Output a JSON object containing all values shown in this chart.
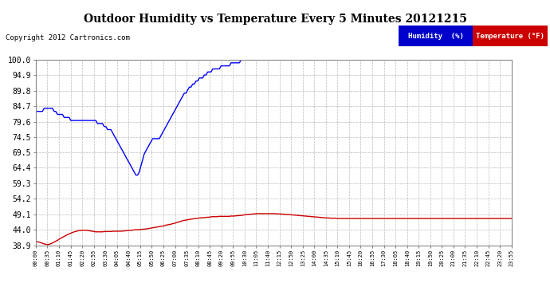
{
  "title": "Outdoor Humidity vs Temperature Every 5 Minutes 20121215",
  "copyright": "Copyright 2012 Cartronics.com",
  "background_color": "#ffffff",
  "grid_color": "#aaaaaa",
  "ylim": [
    38.9,
    100.0
  ],
  "yticks": [
    38.9,
    44.0,
    49.1,
    54.2,
    59.3,
    64.4,
    69.5,
    74.5,
    79.6,
    84.7,
    89.8,
    94.9,
    100.0
  ],
  "legend": [
    {
      "label": "Temperature (°F)",
      "bg": "#cc0000",
      "text_color": "#ffffff"
    },
    {
      "label": "Humidity  (%)",
      "bg": "#0000cc",
      "text_color": "#ffffff"
    }
  ],
  "humidity_color": "#0000ff",
  "temperature_color": "#cc0000",
  "humidity_data": [
    83,
    83,
    83,
    83,
    83,
    84,
    84,
    84,
    84,
    84,
    84,
    83,
    83,
    82,
    82,
    82,
    82,
    81,
    81,
    81,
    81,
    80,
    80,
    80,
    80,
    80,
    80,
    80,
    80,
    80,
    80,
    80,
    80,
    80,
    80,
    80,
    80,
    79,
    79,
    79,
    79,
    78,
    78,
    77,
    77,
    77,
    76,
    75,
    74,
    73,
    72,
    71,
    70,
    69,
    68,
    67,
    66,
    65,
    64,
    63,
    62,
    62,
    63,
    65,
    67,
    69,
    70,
    71,
    72,
    73,
    74,
    74,
    74,
    74,
    74,
    75,
    76,
    77,
    78,
    79,
    80,
    81,
    82,
    83,
    84,
    85,
    86,
    87,
    88,
    89,
    89,
    90,
    91,
    91,
    92,
    92,
    93,
    93,
    94,
    94,
    94,
    95,
    95,
    96,
    96,
    96,
    97,
    97,
    97,
    97,
    97,
    98,
    98,
    98,
    98,
    98,
    98,
    99,
    99,
    99,
    99,
    99,
    99,
    100,
    100,
    100,
    100,
    100,
    100,
    100,
    100,
    100,
    100,
    100,
    100,
    100,
    100,
    100,
    100,
    100,
    100,
    100,
    100,
    100,
    100,
    100,
    100,
    100,
    100,
    100,
    100,
    100,
    100,
    100,
    100,
    100,
    100,
    100,
    100,
    100,
    100,
    100,
    100,
    100,
    100,
    100,
    100,
    100,
    100,
    100,
    100,
    100,
    100,
    100,
    100,
    100,
    100,
    100,
    100,
    100,
    100,
    100,
    100,
    100,
    100,
    100,
    100,
    100,
    100,
    100,
    100,
    100,
    100,
    100,
    100,
    100,
    100,
    100,
    100,
    100,
    100,
    100,
    100,
    100,
    100,
    100,
    100,
    100,
    100,
    100,
    100,
    100,
    100,
    100,
    100,
    100,
    100,
    100,
    100,
    100,
    100,
    100,
    100,
    100,
    100,
    100,
    100,
    100,
    100,
    100,
    100,
    100,
    100,
    100,
    100,
    100,
    100,
    100,
    100,
    100,
    100,
    100,
    100,
    100,
    100,
    100,
    100,
    100,
    100,
    100,
    100,
    100,
    100,
    100,
    100,
    100,
    100,
    100,
    100,
    100,
    100,
    100,
    100,
    100,
    100,
    100,
    100,
    100,
    100,
    100,
    100,
    100,
    100,
    100,
    100,
    100,
    100,
    100,
    100,
    100,
    100,
    100,
    100,
    100,
    100,
    100
  ],
  "temperature_data": [
    40.1,
    40.0,
    39.9,
    39.7,
    39.5,
    39.3,
    39.2,
    39.1,
    39.2,
    39.4,
    39.7,
    40.0,
    40.3,
    40.6,
    41.0,
    41.3,
    41.6,
    41.9,
    42.2,
    42.5,
    42.7,
    43.0,
    43.2,
    43.4,
    43.5,
    43.7,
    43.7,
    43.8,
    43.8,
    43.8,
    43.8,
    43.7,
    43.6,
    43.5,
    43.4,
    43.3,
    43.3,
    43.3,
    43.3,
    43.3,
    43.4,
    43.4,
    43.4,
    43.4,
    43.4,
    43.5,
    43.5,
    43.5,
    43.5,
    43.5,
    43.5,
    43.6,
    43.6,
    43.7,
    43.7,
    43.8,
    43.8,
    43.9,
    44.0,
    44.0,
    44.0,
    44.1,
    44.1,
    44.2,
    44.2,
    44.3,
    44.4,
    44.5,
    44.6,
    44.7,
    44.8,
    44.9,
    45.0,
    45.1,
    45.2,
    45.3,
    45.5,
    45.6,
    45.7,
    45.8,
    46.0,
    46.1,
    46.3,
    46.5,
    46.6,
    46.8,
    47.0,
    47.1,
    47.2,
    47.3,
    47.4,
    47.5,
    47.6,
    47.7,
    47.7,
    47.8,
    47.9,
    47.9,
    48.0,
    48.0,
    48.1,
    48.1,
    48.2,
    48.3,
    48.3,
    48.3,
    48.3,
    48.4,
    48.4,
    48.4,
    48.4,
    48.4,
    48.4,
    48.4,
    48.5,
    48.5,
    48.5,
    48.6,
    48.6,
    48.7,
    48.7,
    48.8,
    48.9,
    49.0,
    49.0,
    49.1,
    49.1,
    49.2,
    49.2,
    49.3,
    49.3,
    49.3,
    49.3,
    49.3,
    49.3,
    49.3,
    49.3,
    49.3,
    49.3,
    49.3,
    49.3,
    49.2,
    49.2,
    49.2,
    49.1,
    49.1,
    49.0,
    49.0,
    49.0,
    48.9,
    48.9,
    48.8,
    48.8,
    48.7,
    48.7,
    48.6,
    48.6,
    48.5,
    48.5,
    48.4,
    48.4,
    48.3,
    48.3,
    48.2,
    48.2,
    48.1,
    48.1,
    48.0,
    48.0,
    47.9,
    47.9,
    47.9,
    47.8,
    47.8,
    47.8,
    47.8,
    47.7,
    47.7,
    47.7,
    47.7,
    47.7,
    47.7,
    47.7,
    47.7,
    47.7,
    47.7,
    47.7,
    47.7,
    47.7,
    47.7,
    47.7,
    47.7,
    47.7,
    47.7,
    47.7,
    47.7,
    47.7,
    47.7,
    47.7,
    47.7,
    47.7,
    47.7,
    47.7,
    47.7,
    47.7,
    47.7,
    47.7,
    47.7,
    47.7,
    47.7,
    47.7,
    47.7,
    47.7,
    47.7,
    47.7,
    47.7,
    47.7,
    47.7,
    47.7,
    47.7,
    47.7,
    47.7,
    47.7,
    47.7,
    47.7,
    47.7,
    47.7,
    47.7,
    47.7,
    47.7,
    47.7,
    47.7,
    47.7,
    47.7,
    47.7,
    47.7,
    47.7,
    47.7,
    47.7,
    47.7,
    47.7,
    47.7,
    47.7,
    47.7,
    47.7,
    47.7,
    47.7,
    47.7,
    47.7,
    47.7,
    47.7,
    47.7,
    47.7,
    47.7,
    47.7,
    47.7,
    47.7,
    47.7,
    47.7,
    47.7,
    47.7,
    47.7,
    47.7,
    47.7,
    47.7,
    47.7,
    47.7,
    47.7,
    47.7,
    47.7,
    47.7,
    47.7,
    47.7,
    47.7,
    47.7,
    47.7,
    47.7,
    47.7,
    47.7
  ],
  "xtick_labels": [
    "00:00",
    "00:35",
    "01:10",
    "01:45",
    "02:20",
    "02:55",
    "03:30",
    "04:05",
    "04:40",
    "05:15",
    "05:50",
    "06:25",
    "07:00",
    "07:35",
    "08:10",
    "08:45",
    "09:20",
    "09:55",
    "10:30",
    "11:05",
    "11:40",
    "12:15",
    "12:50",
    "13:25",
    "14:00",
    "14:35",
    "15:10",
    "15:45",
    "16:20",
    "16:55",
    "17:30",
    "18:05",
    "18:40",
    "19:15",
    "19:50",
    "20:25",
    "21:00",
    "21:35",
    "22:10",
    "22:45",
    "23:20",
    "23:55"
  ]
}
